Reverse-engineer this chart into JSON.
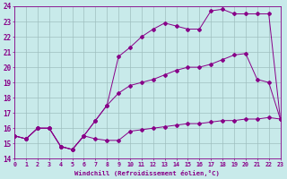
{
  "title": "",
  "xlabel": "Windchill (Refroidissement éolien,°C)",
  "ylabel": "",
  "background_color": "#c8eaea",
  "grid_color": "#9fbfbf",
  "line_color": "#880088",
  "xmin": 0,
  "xmax": 23,
  "ymin": 14,
  "ymax": 24,
  "series1_y": [
    15.5,
    15.3,
    16.0,
    16.0,
    14.8,
    14.6,
    15.5,
    15.3,
    15.2,
    15.2,
    15.8,
    15.9,
    16.0,
    16.1,
    16.2,
    16.3,
    16.3,
    16.4,
    16.5,
    16.5,
    16.6,
    16.6,
    16.7,
    16.6
  ],
  "series2_y": [
    15.5,
    15.3,
    16.0,
    16.0,
    14.8,
    14.6,
    15.5,
    16.5,
    17.5,
    18.3,
    18.8,
    19.0,
    19.2,
    19.5,
    19.8,
    20.0,
    20.0,
    20.2,
    20.5,
    20.8,
    20.9,
    19.2,
    19.0,
    16.6
  ],
  "series3_y": [
    15.5,
    15.3,
    16.0,
    16.0,
    14.8,
    14.6,
    15.5,
    16.5,
    17.5,
    20.7,
    21.3,
    22.0,
    22.5,
    22.9,
    22.7,
    22.5,
    22.5,
    23.7,
    23.8,
    23.5,
    23.5,
    23.5,
    23.5,
    16.6
  ]
}
